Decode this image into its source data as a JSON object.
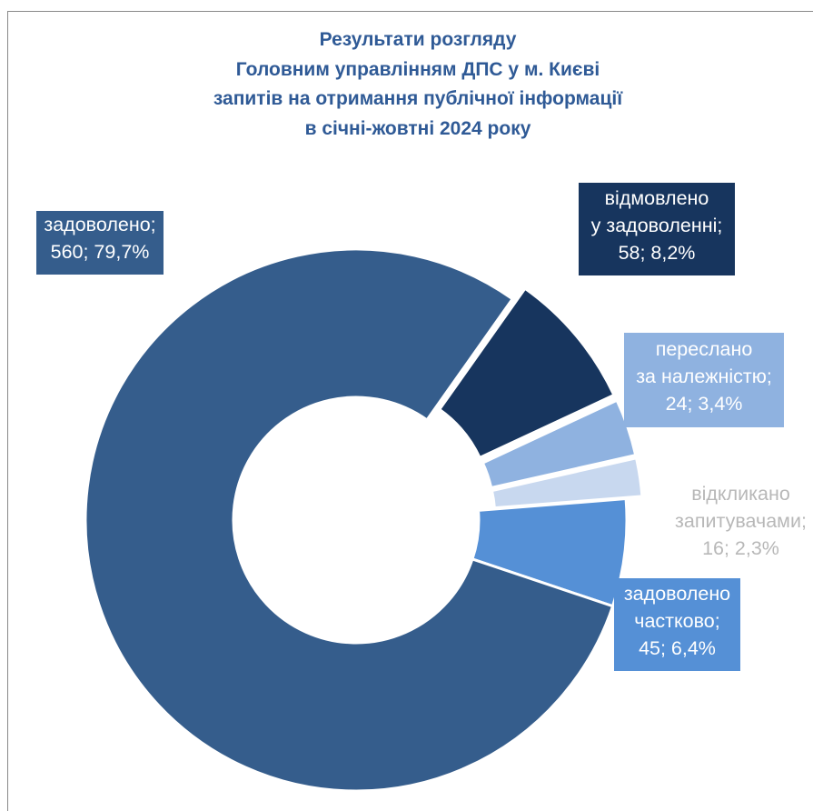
{
  "chart_data": {
    "type": "pie",
    "donut": true,
    "title_lines": [
      "Результати розгляду",
      "Головним управлінням ДПС  у  м. Києві",
      "запитів на отримання публічної інформації",
      "в січні-жовтні 2024 року"
    ],
    "slices": [
      {
        "name": "задоволено",
        "value": 560,
        "percent": "79,7%",
        "color": "#355d8c",
        "label_lines": [
          "задоволено;",
          "560; 79,7%"
        ]
      },
      {
        "name": "відмовлено у задоволенні",
        "value": 58,
        "percent": "8,2%",
        "color": "#17355e",
        "label_lines": [
          "відмовлено",
          "у задоволенні;",
          "58; 8,2%"
        ]
      },
      {
        "name": "переслано за належністю",
        "value": 24,
        "percent": "3,4%",
        "color": "#8fb2e0",
        "label_lines": [
          "переслано",
          "за належністю;",
          "24; 3,4%"
        ]
      },
      {
        "name": "відкликано запитувачами",
        "value": 16,
        "percent": "2,3%",
        "color": "#c8d8ef",
        "label_lines": [
          "відкликано",
          "запитувачами;",
          "16; 2,3%"
        ]
      },
      {
        "name": "задоволено частково",
        "value": 45,
        "percent": "6,4%",
        "color": "#5590d6",
        "label_lines": [
          "задоволено",
          "частково;",
          "45; 6,4%"
        ]
      }
    ]
  }
}
